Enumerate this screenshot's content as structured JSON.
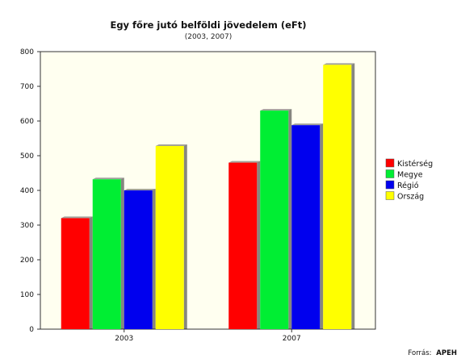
{
  "chart_data": {
    "type": "bar",
    "title": "Egy főre jutó belföldi jövedelem (eFt)",
    "subtitle": "(2003, 2007)",
    "categories": [
      "2003",
      "2007"
    ],
    "series": [
      {
        "name": "Kistérség",
        "values": [
          320,
          480
        ],
        "color": "#ff0000"
      },
      {
        "name": "Megye",
        "values": [
          432,
          630
        ],
        "color": "#00ee33"
      },
      {
        "name": "Régió",
        "values": [
          400,
          588
        ],
        "color": "#0000ee"
      },
      {
        "name": "Ország",
        "values": [
          528,
          762
        ],
        "color": "#ffff00"
      }
    ],
    "xlabel": "",
    "ylabel": "",
    "ylim": [
      0,
      800
    ],
    "yticks": [
      "0",
      "100",
      "200",
      "300",
      "400",
      "500",
      "600",
      "700",
      "800"
    ],
    "grid": false,
    "legend": "right",
    "plot_background": "#fffff0",
    "source_label": "Forrás:",
    "source_value": "APEH"
  }
}
